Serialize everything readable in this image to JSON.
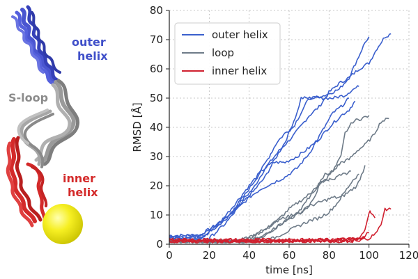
{
  "molecule": {
    "labels": {
      "outer_1": "outer",
      "outer_2": "helix",
      "sloop": "S-loop",
      "inner_1": "inner",
      "inner_2": "helix"
    },
    "colors": {
      "outer": "#3f4fc9",
      "loop": "#8c8c8c",
      "inner": "#d42a2a",
      "ball": "#f2ec1c"
    }
  },
  "chart_data": {
    "type": "line",
    "xlabel": "time [ns]",
    "ylabel": "RMSD [Å]",
    "xlim": [
      0,
      120
    ],
    "ylim": [
      0,
      80
    ],
    "xticks": [
      0,
      20,
      40,
      60,
      80,
      100,
      120
    ],
    "yticks": [
      0,
      10,
      20,
      30,
      40,
      50,
      60,
      70,
      80
    ],
    "grid": true,
    "legend_position": "top-left",
    "series": [
      {
        "name": "outer helix",
        "color": "#3a5fcd",
        "runs": [
          [
            [
              0,
              3
            ],
            [
              15,
              3
            ],
            [
              22,
              6
            ],
            [
              30,
              10
            ],
            [
              35,
              14
            ],
            [
              42,
              19
            ],
            [
              48,
              26
            ],
            [
              55,
              32
            ],
            [
              62,
              37
            ],
            [
              70,
              44
            ],
            [
              75,
              47
            ],
            [
              80,
              52
            ],
            [
              85,
              55
            ],
            [
              90,
              57
            ],
            [
              95,
              60
            ],
            [
              100,
              62
            ],
            [
              104,
              67
            ],
            [
              108,
              71
            ],
            [
              111,
              72
            ]
          ],
          [
            [
              0,
              2
            ],
            [
              12,
              2
            ],
            [
              20,
              5
            ],
            [
              28,
              8
            ],
            [
              35,
              13
            ],
            [
              42,
              18
            ],
            [
              48,
              23
            ],
            [
              52,
              28
            ],
            [
              58,
              35
            ],
            [
              64,
              45
            ],
            [
              66,
              50
            ],
            [
              72,
              50
            ],
            [
              78,
              51
            ],
            [
              85,
              53
            ],
            [
              90,
              57
            ],
            [
              94,
              63
            ],
            [
              98,
              69
            ],
            [
              100,
              71
            ]
          ],
          [
            [
              0,
              2
            ],
            [
              16,
              2
            ],
            [
              24,
              6
            ],
            [
              30,
              10
            ],
            [
              38,
              17
            ],
            [
              44,
              23
            ],
            [
              50,
              30
            ],
            [
              54,
              35
            ],
            [
              58,
              38
            ],
            [
              62,
              40
            ],
            [
              66,
              45
            ],
            [
              70,
              50
            ],
            [
              76,
              50
            ],
            [
              82,
              50
            ],
            [
              88,
              51
            ],
            [
              92,
              53
            ],
            [
              95,
              54
            ]
          ],
          [
            [
              0,
              3
            ],
            [
              18,
              3
            ],
            [
              26,
              8
            ],
            [
              32,
              13
            ],
            [
              40,
              20
            ],
            [
              46,
              25
            ],
            [
              52,
              28
            ],
            [
              58,
              28
            ],
            [
              64,
              30
            ],
            [
              70,
              33
            ],
            [
              75,
              36
            ],
            [
              80,
              40
            ],
            [
              86,
              44
            ],
            [
              90,
              46
            ],
            [
              93,
              49
            ]
          ],
          [
            [
              0,
              2
            ],
            [
              20,
              2
            ],
            [
              28,
              7
            ],
            [
              34,
              12
            ],
            [
              40,
              16
            ],
            [
              46,
              19
            ],
            [
              52,
              21
            ],
            [
              58,
              23
            ],
            [
              64,
              26
            ],
            [
              70,
              31
            ],
            [
              76,
              38
            ],
            [
              82,
              45
            ],
            [
              86,
              47
            ],
            [
              90,
              50
            ]
          ]
        ]
      },
      {
        "name": "loop",
        "color": "#6e7b88",
        "runs": [
          [
            [
              0,
              1
            ],
            [
              30,
              1
            ],
            [
              40,
              2
            ],
            [
              48,
              5
            ],
            [
              54,
              8
            ],
            [
              60,
              12
            ],
            [
              66,
              15
            ],
            [
              72,
              18
            ],
            [
              78,
              22
            ],
            [
              82,
              25
            ],
            [
              86,
              28
            ],
            [
              90,
              29
            ],
            [
              94,
              32
            ],
            [
              98,
              34
            ],
            [
              102,
              37
            ],
            [
              106,
              42
            ],
            [
              110,
              43
            ]
          ],
          [
            [
              0,
              1
            ],
            [
              40,
              1
            ],
            [
              48,
              3
            ],
            [
              54,
              6
            ],
            [
              60,
              9
            ],
            [
              66,
              11
            ],
            [
              70,
              13
            ],
            [
              74,
              18
            ],
            [
              76,
              22
            ],
            [
              78,
              24
            ],
            [
              82,
              25
            ],
            [
              86,
              30
            ],
            [
              88,
              38
            ],
            [
              90,
              40
            ],
            [
              92,
              42
            ],
            [
              96,
              43
            ],
            [
              100,
              44
            ]
          ],
          [
            [
              0,
              1
            ],
            [
              35,
              1
            ],
            [
              42,
              3
            ],
            [
              50,
              6
            ],
            [
              56,
              9
            ],
            [
              62,
              10
            ],
            [
              66,
              12
            ],
            [
              70,
              16
            ],
            [
              74,
              20
            ],
            [
              78,
              22
            ],
            [
              82,
              22
            ],
            [
              86,
              24
            ],
            [
              88,
              24
            ],
            [
              91,
              25
            ]
          ],
          [
            [
              0,
              1
            ],
            [
              38,
              1
            ],
            [
              45,
              2
            ],
            [
              52,
              5
            ],
            [
              58,
              8
            ],
            [
              64,
              10
            ],
            [
              70,
              13
            ],
            [
              74,
              14
            ],
            [
              78,
              15
            ],
            [
              82,
              16
            ],
            [
              86,
              16
            ],
            [
              90,
              18
            ],
            [
              94,
              20
            ],
            [
              97,
              25
            ],
            [
              98,
              27
            ]
          ],
          [
            [
              0,
              1
            ],
            [
              45,
              1
            ],
            [
              52,
              2
            ],
            [
              58,
              4
            ],
            [
              64,
              6
            ],
            [
              70,
              8
            ],
            [
              75,
              9
            ],
            [
              80,
              11
            ],
            [
              84,
              14
            ],
            [
              88,
              18
            ],
            [
              92,
              22
            ],
            [
              95,
              24
            ]
          ]
        ]
      },
      {
        "name": "inner helix",
        "color": "#d0202f",
        "runs": [
          [
            [
              0,
              1
            ],
            [
              70,
              1
            ],
            [
              85,
              1.5
            ],
            [
              95,
              2
            ],
            [
              98,
              5
            ],
            [
              100,
              11
            ],
            [
              101,
              11
            ],
            [
              103,
              9
            ]
          ],
          [
            [
              0,
              1.5
            ],
            [
              80,
              1.5
            ],
            [
              100,
              2
            ],
            [
              104,
              4
            ],
            [
              106,
              7
            ],
            [
              108,
              12
            ],
            [
              111,
              12
            ]
          ],
          [
            [
              0,
              1
            ],
            [
              90,
              1
            ],
            [
              96,
              1.5
            ],
            [
              98,
              3
            ],
            [
              100,
              4
            ]
          ],
          [
            [
              0,
              1.5
            ],
            [
              85,
              1.5
            ],
            [
              95,
              2
            ],
            [
              98,
              2.5
            ]
          ],
          [
            [
              0,
              1
            ],
            [
              92,
              1.2
            ],
            [
              96,
              1.6
            ]
          ]
        ]
      }
    ]
  }
}
